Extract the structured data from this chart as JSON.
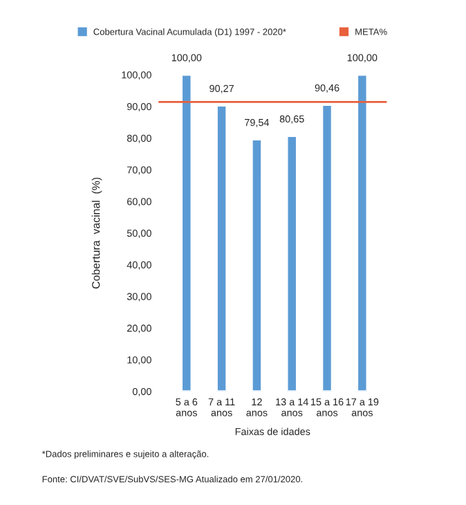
{
  "chart_data": {
    "type": "bar",
    "categories": [
      "5 a 6\nanos",
      "7 a 11\nanos",
      "12\nanos",
      "13 a 14\nanos",
      "15 a 16\nanos",
      "17 a 19\nanos"
    ],
    "series": [
      {
        "name": "Cobertura Vacinal Acumulada (D1) 1997 - 2020*",
        "color": "#5b9bd5",
        "values": [
          100.0,
          90.27,
          79.54,
          80.65,
          90.46,
          100.0
        ],
        "value_labels": [
          "100,00",
          "90,27",
          "79,54",
          "80,65",
          "90,46",
          "100,00"
        ]
      }
    ],
    "ylim": [
      0,
      100
    ],
    "yticks": [
      {
        "value": 0,
        "label": "0,00"
      },
      {
        "value": 10,
        "label": "10,00"
      },
      {
        "value": 20,
        "label": "20,00"
      },
      {
        "value": 30,
        "label": "30,00"
      },
      {
        "value": 40,
        "label": "40,00"
      },
      {
        "value": 50,
        "label": "50,00"
      },
      {
        "value": 60,
        "label": "60,00"
      },
      {
        "value": 70,
        "label": "70,00"
      },
      {
        "value": 80,
        "label": "80,00"
      },
      {
        "value": 90,
        "label": "90,00"
      },
      {
        "value": 100,
        "label": "100,00"
      }
    ],
    "ref_lines": [
      {
        "axis": "y",
        "value": 91.4,
        "label": "META%",
        "color": "#e8603c"
      }
    ],
    "xlabel": "Faixas de idades",
    "ylabel": "Cobertura  vacinal  (%)",
    "legend": "top",
    "grid": false,
    "annotations": [
      "*Dados preliminares e sujeito a alteração.",
      "Fonte: CI/DVAT/SVE/SubVS/SES-MG Atualizado em 27/01/2020."
    ]
  }
}
